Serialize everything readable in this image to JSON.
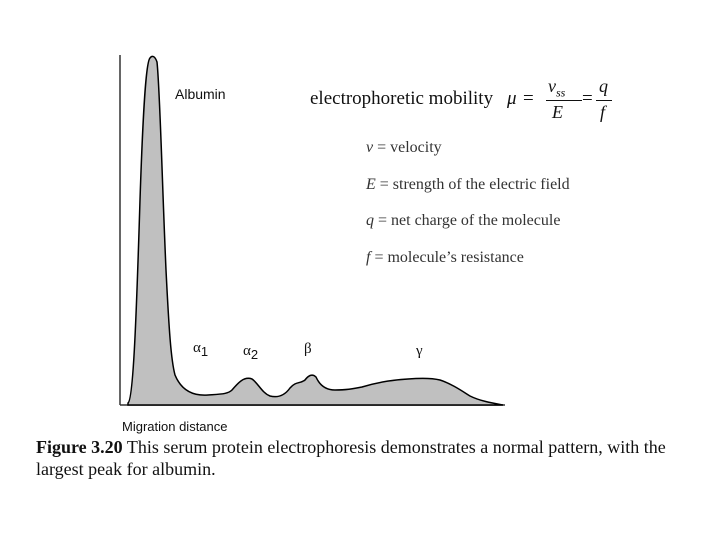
{
  "peak_labels": {
    "albumin": "Albumin",
    "alpha1_symbol": "α",
    "alpha1_sub": "1",
    "alpha2_symbol": "α",
    "alpha2_sub": "2",
    "beta": "β",
    "gamma": "γ"
  },
  "formula": {
    "word": "electrophoretic mobility",
    "mu": "μ",
    "eq": "=",
    "num1_v": "v",
    "num1_sub": "ss",
    "den1": "E",
    "num2": "q",
    "den2": "f"
  },
  "definitions": [
    {
      "symbol": "v",
      "text": " = velocity"
    },
    {
      "symbol": "E",
      "text": " = strength of the electric field"
    },
    {
      "symbol": "q",
      "text": "  = net charge of the molecule"
    },
    {
      "symbol": "f",
      "text": " =  molecule’s resistance"
    }
  ],
  "axis": {
    "xlabel": "Migration distance"
  },
  "caption": {
    "bold": "Figure 3.20",
    "text": " This serum protein electrophoresis demonstrates a normal pattern, with the largest peak for albumin."
  },
  "colors": {
    "fill": "#c0c0c0",
    "stroke": "#000000"
  }
}
